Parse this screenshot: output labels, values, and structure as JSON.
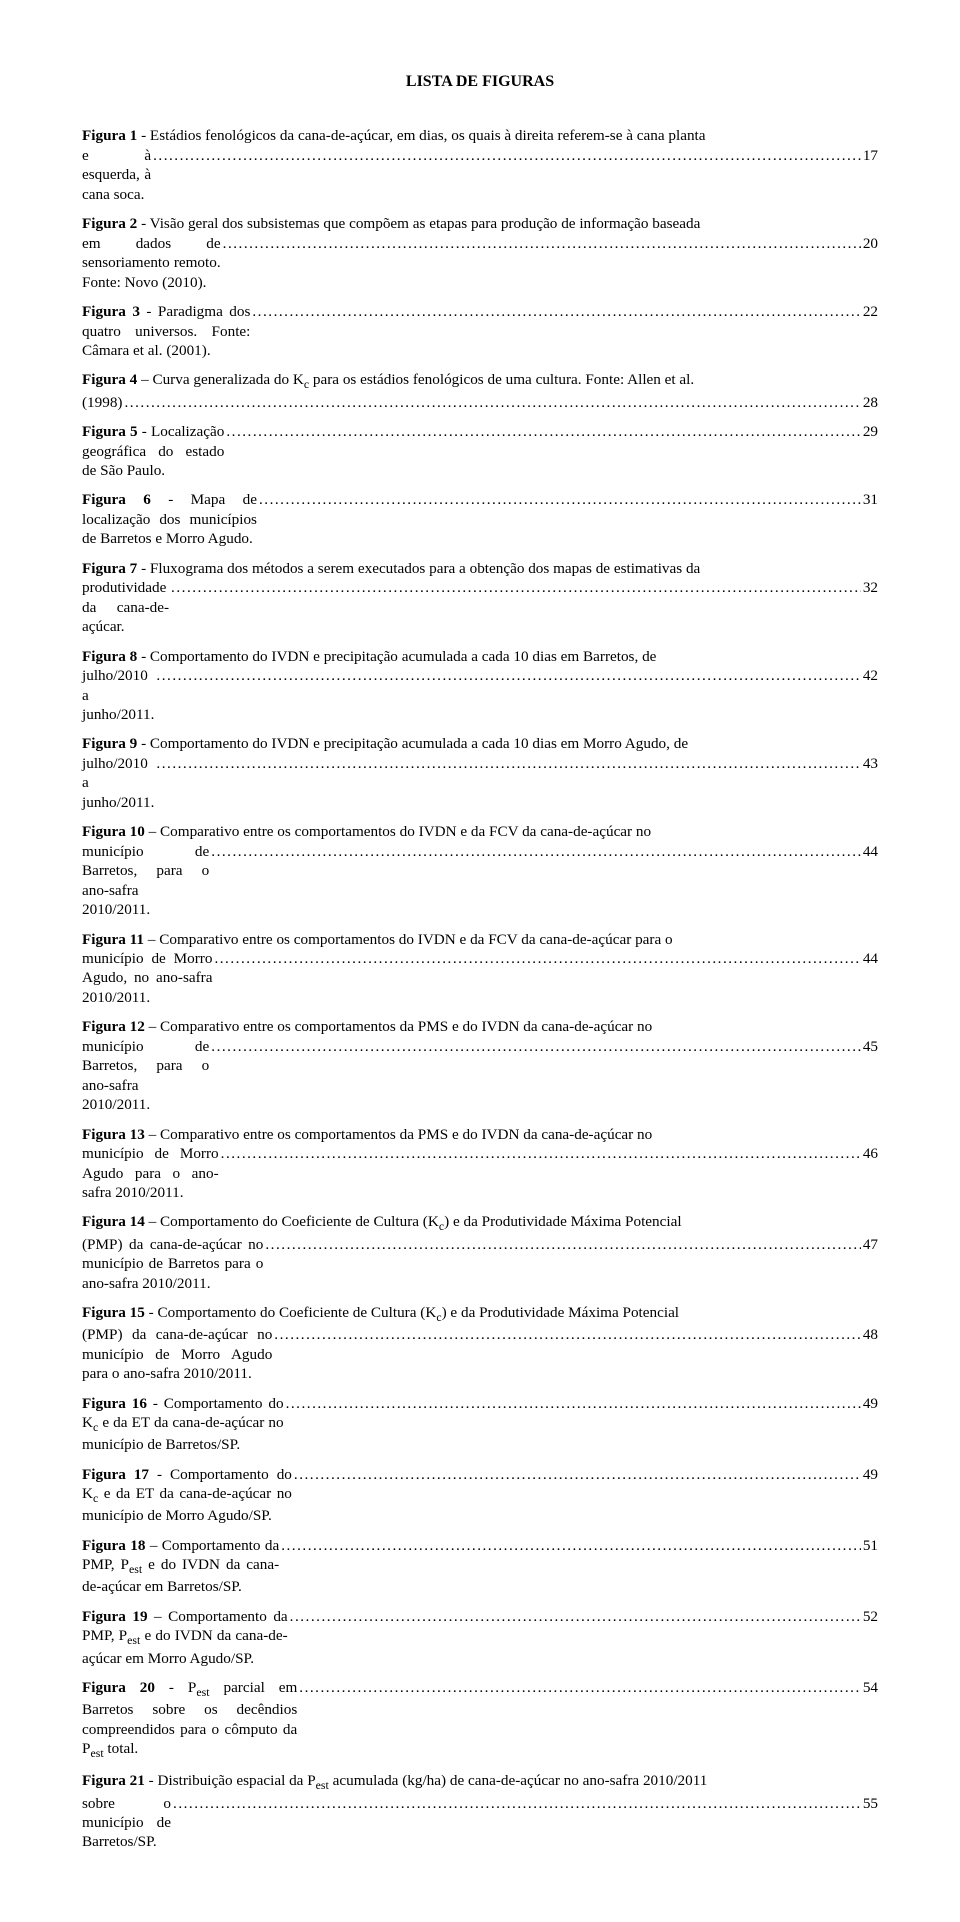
{
  "title": "LISTA DE FIGURAS",
  "leader_char": ".",
  "entries": [
    {
      "label": "Figura 1",
      "text_pre_last": " - Estádios fenológicos da cana-de-açúcar, em dias, os quais à direita referem-se à cana planta ",
      "last_line": "e à esquerda, à cana soca.",
      "page": "17"
    },
    {
      "label": "Figura 2",
      "text_pre_last": " - Visão geral dos subsistemas que compõem as etapas para produção de informação baseada ",
      "last_line": "em dados de sensoriamento remoto. Fonte: Novo (2010).",
      "page": "20"
    },
    {
      "label": "Figura 3",
      "text_pre_last": "",
      "last_line": " - Paradigma dos quatro universos. Fonte: Câmara et al. (2001).",
      "page": "22"
    },
    {
      "label": "Figura 4",
      "text_pre_last": " – Curva generalizada do K",
      "sub_after_pre": "c",
      "text_pre_last2": " para os estádios fenológicos de uma cultura. Fonte: Allen et al. ",
      "last_line": "(1998)",
      "page": "28"
    },
    {
      "label": "Figura 5",
      "text_pre_last": "",
      "last_line": " - Localização geográfica do estado de São Paulo.",
      "page": "29"
    },
    {
      "label": "Figura 6",
      "text_pre_last": "",
      "last_line": " - Mapa de localização dos municípios de Barretos e Morro Agudo.",
      "page": "31"
    },
    {
      "label": "Figura 7",
      "text_pre_last": " - Fluxograma dos métodos a serem executados para a obtenção dos mapas de estimativas da ",
      "last_line": "produtividade da cana-de-açúcar.",
      "page": "32"
    },
    {
      "label": "Figura 8",
      "text_pre_last": " - Comportamento do IVDN e precipitação acumulada a cada 10 dias em Barretos, de ",
      "last_line": "julho/2010 a junho/2011.",
      "page": "42"
    },
    {
      "label": "Figura 9",
      "text_pre_last": " - Comportamento do IVDN e precipitação acumulada a cada 10 dias em Morro Agudo, de ",
      "last_line": "julho/2010 a junho/2011.",
      "page": "43"
    },
    {
      "label": "Figura 10",
      "text_pre_last": " – Comparativo entre os comportamentos do IVDN e da FCV da cana-de-açúcar no ",
      "last_line": "município de Barretos, para o ano-safra 2010/2011.",
      "page": "44"
    },
    {
      "label": "Figura 11",
      "text_pre_last": " – Comparativo entre os comportamentos do IVDN e da FCV da cana-de-açúcar para o ",
      "last_line": "município de Morro Agudo, no ano-safra 2010/2011.",
      "page": "44"
    },
    {
      "label": "Figura 12",
      "text_pre_last": " – Comparativo entre os comportamentos da PMS e do IVDN da cana-de-açúcar no ",
      "last_line": "município de Barretos, para o ano-safra 2010/2011.",
      "page": "45"
    },
    {
      "label": "Figura 13",
      "text_pre_last": " – Comparativo entre os comportamentos da PMS e do IVDN da cana-de-açúcar no ",
      "last_line": "município de Morro Agudo para o ano-safra 2010/2011.",
      "page": "46"
    },
    {
      "label": "Figura 14",
      "text_pre_last": " – Comportamento do Coeficiente de Cultura (K",
      "sub_after_pre": "c",
      "text_pre_last2": ") e da Produtividade Máxima Potencial ",
      "last_line": "(PMP) da cana-de-açúcar no município de Barretos para o ano-safra 2010/2011.",
      "page": "47"
    },
    {
      "label": "Figura 15",
      "text_pre_last": " - Comportamento do Coeficiente de Cultura (K",
      "sub_after_pre": "c",
      "text_pre_last2": ") e da Produtividade Máxima Potencial ",
      "last_line": "(PMP) da cana-de-açúcar no município de Morro Agudo para o ano-safra 2010/2011.",
      "page": "48"
    },
    {
      "label": "Figura 16",
      "text_pre_last": "",
      "last_line_parts": [
        {
          "t": " - Comportamento do K"
        },
        {
          "sub": "c"
        },
        {
          "t": " e da ET da cana-de-açúcar no município de Barretos/SP."
        }
      ],
      "page": "49"
    },
    {
      "label": "Figura 17",
      "text_pre_last": "",
      "last_line_parts": [
        {
          "t": " - Comportamento do K"
        },
        {
          "sub": "c"
        },
        {
          "t": " e da ET da cana-de-açúcar no município de Morro Agudo/SP. "
        }
      ],
      "page": "49"
    },
    {
      "label": "Figura 18",
      "text_pre_last": "",
      "last_line_parts": [
        {
          "t": " – Comportamento da PMP, P"
        },
        {
          "sub": "est"
        },
        {
          "t": " e do IVDN da cana-de-açúcar em Barretos/SP."
        }
      ],
      "page": "51"
    },
    {
      "label": "Figura 19",
      "text_pre_last": "",
      "last_line_parts": [
        {
          "t": " – Comportamento da PMP, P"
        },
        {
          "sub": "est"
        },
        {
          "t": " e do IVDN da cana-de-açúcar em Morro Agudo/SP."
        }
      ],
      "page": "52"
    },
    {
      "label": "Figura 20",
      "text_pre_last": "",
      "last_line_parts": [
        {
          "t": " - P"
        },
        {
          "sub": "est"
        },
        {
          "t": " parcial em Barretos sobre os decêndios compreendidos para o cômputo da P"
        },
        {
          "sub": "est"
        },
        {
          "t": " total. "
        }
      ],
      "page": "54"
    },
    {
      "label": "Figura 21",
      "pre_parts": [
        {
          "t": " - Distribuição espacial da P"
        },
        {
          "sub": "est"
        },
        {
          "t": " acumulada (kg/ha) de cana-de-açúcar no ano-safra 2010/2011 "
        }
      ],
      "last_line": "sobre o município de Barretos/SP.",
      "page": "55"
    }
  ]
}
